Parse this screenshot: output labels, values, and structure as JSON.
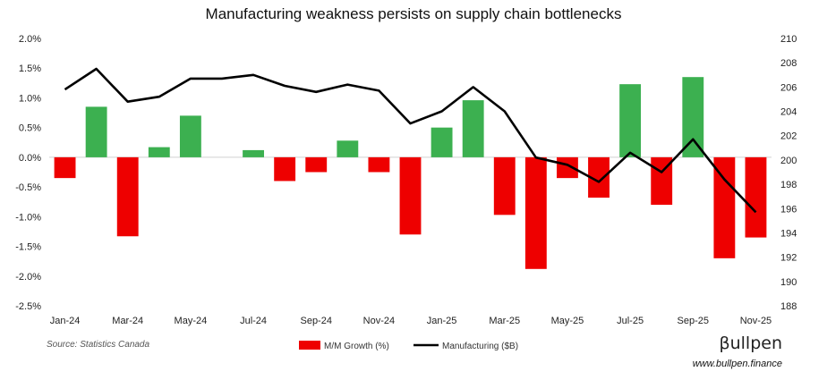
{
  "chart_data": {
    "type": "bar",
    "title": "Manufacturing weakness persists on supply chain bottlenecks",
    "categories": [
      "Jan-24",
      "Feb-24",
      "Mar-24",
      "Apr-24",
      "May-24",
      "Jun-24",
      "Jul-24",
      "Aug-24",
      "Sep-24",
      "Oct-24",
      "Nov-24",
      "Dec-24",
      "Jan-25",
      "Feb-25",
      "Mar-25",
      "Apr-25",
      "May-25",
      "Jun-25",
      "Jul-25",
      "Aug-25",
      "Sep-25",
      "Oct-25",
      "Nov-25"
    ],
    "x_tick_labels": [
      "Jan-24",
      "Mar-24",
      "May-24",
      "Jul-24",
      "Sep-24",
      "Nov-24",
      "Jan-25",
      "Mar-25",
      "May-25",
      "Jul-25",
      "Sep-25",
      "Nov-25"
    ],
    "series": [
      {
        "name": "M/M Growth (%)",
        "axis": "left",
        "type": "bar",
        "positive_color": "#3cb050",
        "negative_color": "#ee0000",
        "values": [
          -0.35,
          0.85,
          -1.33,
          0.17,
          0.7,
          0.0,
          0.12,
          -0.4,
          -0.25,
          0.28,
          -0.25,
          -1.3,
          0.5,
          0.96,
          -0.97,
          -1.88,
          -0.35,
          -0.68,
          1.23,
          -0.8,
          1.35,
          -1.7,
          -1.35
        ]
      },
      {
        "name": "Manufacturing ($B)",
        "axis": "right",
        "type": "line",
        "color": "#000000",
        "values": [
          205.8,
          207.5,
          204.8,
          205.2,
          206.7,
          206.7,
          207.0,
          206.1,
          205.6,
          206.2,
          205.7,
          203.0,
          204.0,
          206.0,
          204.0,
          200.2,
          199.6,
          198.2,
          200.6,
          199.0,
          201.7,
          198.4,
          195.7
        ]
      }
    ],
    "y_left": {
      "min": -2.5,
      "max": 2.0,
      "step": 0.5,
      "format": "percent",
      "tick_labels": [
        "-2.5%",
        "-2.0%",
        "-1.5%",
        "-1.0%",
        "-0.5%",
        "0.0%",
        "0.5%",
        "1.0%",
        "1.5%",
        "2.0%"
      ]
    },
    "y_right": {
      "min": 188,
      "max": 210,
      "step": 2,
      "tick_labels": [
        "188",
        "190",
        "192",
        "194",
        "196",
        "198",
        "200",
        "202",
        "204",
        "206",
        "208",
        "210"
      ]
    },
    "legend": [
      {
        "label": "M/M Growth (%)",
        "color": "#ee0000",
        "kind": "box"
      },
      {
        "label": "Manufacturing ($B)",
        "color": "#000000",
        "kind": "line"
      }
    ],
    "legend_position": "bottom-center",
    "grid": false
  },
  "source": "Source: Statistics Canada",
  "brand": {
    "logo_text": "βullpen",
    "url": "www.bullpen.finance"
  }
}
